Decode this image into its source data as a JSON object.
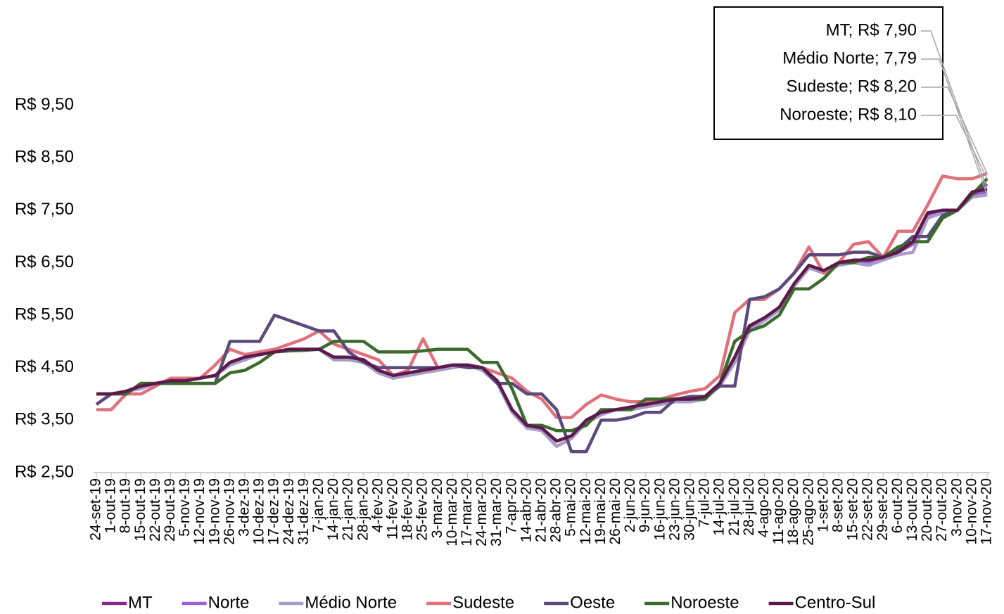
{
  "chart_data": {
    "type": "line",
    "categories": [
      "24-set-19",
      "1-out-19",
      "8-out-19",
      "15-out-19",
      "22-out-19",
      "29-out-19",
      "5-nov-19",
      "12-nov-19",
      "19-nov-19",
      "26-nov-19",
      "3-dez-19",
      "10-dez-19",
      "17-dez-19",
      "24-dez-19",
      "31-dez-19",
      "7-jan-20",
      "14-jan-20",
      "21-jan-20",
      "28-jan-20",
      "4-fev-20",
      "11-fev-20",
      "18-fev-20",
      "25-fev-20",
      "3-mar-20",
      "10-mar-20",
      "17-mar-20",
      "24-mar-20",
      "31-mar-20",
      "7-apr-20",
      "14-abr-20",
      "21-abr-20",
      "28-abr-20",
      "5-mai-20",
      "12-mai-20",
      "19-mai-20",
      "26-mai-20",
      "2-jun-20",
      "9-jun-20",
      "16-jun-20",
      "23-jun-20",
      "30-jun-20",
      "7-jul-20",
      "14-jul-20",
      "21-jul-20",
      "28-jul-20",
      "4-ago-20",
      "11-ago-20",
      "18-ago-20",
      "25-ago-20",
      "1-set-20",
      "8-set-20",
      "15-set-20",
      "22-set-20",
      "29-set-20",
      "6-out-20",
      "13-out-20",
      "20-out-20",
      "27-out-20",
      "3-nov-20",
      "10-nov-20",
      "17-nov-20"
    ],
    "series": [
      {
        "name": "MT",
        "color": "#84298a",
        "last_label": "MT; R$ 7,90",
        "values": [
          4.0,
          4.0,
          4.05,
          4.15,
          4.2,
          4.25,
          4.25,
          4.3,
          4.35,
          4.6,
          4.7,
          4.75,
          4.8,
          4.85,
          4.85,
          4.85,
          4.7,
          4.7,
          4.65,
          4.45,
          4.35,
          4.4,
          4.45,
          4.5,
          4.55,
          4.55,
          4.5,
          4.25,
          3.7,
          3.4,
          3.35,
          3.1,
          3.2,
          3.5,
          3.65,
          3.7,
          3.75,
          3.8,
          3.85,
          3.9,
          3.9,
          3.95,
          4.2,
          4.7,
          5.3,
          5.45,
          5.65,
          6.1,
          6.45,
          6.35,
          6.5,
          6.55,
          6.55,
          6.6,
          6.7,
          6.9,
          7.45,
          7.5,
          7.5,
          7.85,
          7.9
        ]
      },
      {
        "name": "Norte",
        "color": "#9b5fd6",
        "values": [
          4.0,
          4.0,
          4.05,
          4.15,
          4.2,
          4.25,
          4.25,
          4.3,
          4.35,
          4.6,
          4.7,
          4.75,
          4.8,
          4.85,
          4.85,
          4.85,
          4.7,
          4.7,
          4.65,
          4.45,
          4.35,
          4.4,
          4.45,
          4.5,
          4.55,
          4.55,
          4.5,
          4.25,
          3.7,
          3.4,
          3.35,
          3.1,
          3.2,
          3.5,
          3.65,
          3.7,
          3.75,
          3.8,
          3.85,
          3.9,
          3.9,
          3.95,
          4.2,
          4.65,
          5.25,
          5.4,
          5.6,
          6.05,
          6.4,
          6.35,
          6.5,
          6.5,
          6.5,
          6.6,
          6.7,
          6.85,
          7.4,
          7.5,
          7.5,
          7.8,
          7.85
        ]
      },
      {
        "name": "Médio Norte",
        "color": "#a79bc8",
        "last_label": "Médio Norte; 7,79",
        "values": [
          4.0,
          4.0,
          4.05,
          4.1,
          4.2,
          4.25,
          4.25,
          4.3,
          4.35,
          4.55,
          4.65,
          4.75,
          4.8,
          4.85,
          4.85,
          4.85,
          4.65,
          4.65,
          4.6,
          4.4,
          4.3,
          4.35,
          4.4,
          4.45,
          4.5,
          4.55,
          4.45,
          4.2,
          3.65,
          3.35,
          3.3,
          3.0,
          3.15,
          3.45,
          3.6,
          3.7,
          3.7,
          3.75,
          3.8,
          3.85,
          3.85,
          3.9,
          4.15,
          4.6,
          5.2,
          5.4,
          5.6,
          6.05,
          6.4,
          6.3,
          6.45,
          6.5,
          6.45,
          6.55,
          6.65,
          6.7,
          7.35,
          7.45,
          7.5,
          7.75,
          7.79
        ]
      },
      {
        "name": "Sudeste",
        "color": "#e0717c",
        "last_label": "Sudeste; R$ 8,20",
        "values": [
          3.7,
          3.7,
          4.0,
          4.0,
          4.15,
          4.3,
          4.3,
          4.3,
          4.55,
          4.85,
          4.75,
          4.8,
          4.85,
          4.95,
          5.05,
          5.2,
          4.95,
          4.85,
          4.75,
          4.65,
          4.35,
          4.45,
          5.05,
          4.5,
          4.55,
          4.55,
          4.5,
          4.4,
          4.3,
          4.05,
          3.9,
          3.55,
          3.55,
          3.8,
          3.98,
          3.9,
          3.85,
          3.85,
          3.9,
          3.98,
          4.05,
          4.1,
          4.35,
          5.55,
          5.8,
          5.8,
          6.0,
          6.3,
          6.8,
          6.3,
          6.5,
          6.85,
          6.9,
          6.6,
          7.1,
          7.1,
          7.6,
          8.15,
          8.1,
          8.1,
          8.2
        ]
      },
      {
        "name": "Oeste",
        "color": "#5b4a7c",
        "values": [
          3.8,
          4.0,
          4.0,
          4.2,
          4.2,
          4.2,
          4.2,
          4.2,
          4.2,
          5.0,
          5.0,
          5.0,
          5.5,
          5.4,
          5.3,
          5.2,
          5.2,
          4.8,
          4.6,
          4.5,
          4.5,
          4.5,
          4.5,
          4.5,
          4.55,
          4.5,
          4.5,
          4.2,
          4.2,
          4.0,
          4.0,
          3.7,
          2.9,
          2.9,
          3.5,
          3.5,
          3.55,
          3.65,
          3.65,
          3.9,
          3.95,
          3.95,
          4.15,
          4.15,
          5.8,
          5.85,
          6.0,
          6.3,
          6.65,
          6.65,
          6.65,
          6.7,
          6.7,
          6.6,
          6.75,
          7.0,
          7.0,
          7.4,
          7.5,
          7.8,
          8.0
        ]
      },
      {
        "name": "Noroeste",
        "color": "#3b6b2c",
        "last_label": "Noroeste; R$ 8,10",
        "values": [
          4.0,
          4.0,
          4.0,
          4.2,
          4.2,
          4.2,
          4.2,
          4.2,
          4.2,
          4.4,
          4.45,
          4.6,
          4.8,
          4.82,
          4.83,
          4.85,
          5.0,
          5.0,
          5.0,
          4.8,
          4.8,
          4.8,
          4.82,
          4.85,
          4.85,
          4.85,
          4.6,
          4.6,
          4.1,
          3.4,
          3.4,
          3.3,
          3.3,
          3.4,
          3.7,
          3.7,
          3.7,
          3.9,
          3.9,
          3.9,
          3.9,
          3.9,
          4.2,
          5.0,
          5.2,
          5.3,
          5.5,
          6.0,
          6.0,
          6.2,
          6.5,
          6.5,
          6.6,
          6.6,
          6.8,
          6.9,
          6.9,
          7.35,
          7.5,
          7.8,
          8.1
        ]
      },
      {
        "name": "Centro-Sul",
        "color": "#5c1a4c",
        "values": [
          4.0,
          4.0,
          4.05,
          4.15,
          4.2,
          4.25,
          4.25,
          4.3,
          4.35,
          4.6,
          4.7,
          4.75,
          4.8,
          4.85,
          4.85,
          4.85,
          4.7,
          4.7,
          4.65,
          4.45,
          4.35,
          4.4,
          4.45,
          4.5,
          4.55,
          4.55,
          4.5,
          4.25,
          3.7,
          3.4,
          3.35,
          3.1,
          3.2,
          3.5,
          3.65,
          3.7,
          3.75,
          3.8,
          3.85,
          3.9,
          3.9,
          3.95,
          4.2,
          4.7,
          5.3,
          5.45,
          5.65,
          6.1,
          6.45,
          6.35,
          6.5,
          6.55,
          6.55,
          6.6,
          6.7,
          6.9,
          7.45,
          7.5,
          7.5,
          7.85,
          7.9
        ]
      }
    ],
    "ylim": [
      2.5,
      10.5
    ],
    "yticks": [
      {
        "value": 2.5,
        "label": "R$ 2,50"
      },
      {
        "value": 3.5,
        "label": "R$ 3,50"
      },
      {
        "value": 4.5,
        "label": "R$ 4,50"
      },
      {
        "value": 5.5,
        "label": "R$ 5,50"
      },
      {
        "value": 6.5,
        "label": "R$ 6,50"
      },
      {
        "value": 7.5,
        "label": "R$ 7,50"
      },
      {
        "value": 8.5,
        "label": "R$ 8,50"
      },
      {
        "value": 9.5,
        "label": "R$ 9,50"
      }
    ],
    "grid": false,
    "legend": "bottom"
  }
}
